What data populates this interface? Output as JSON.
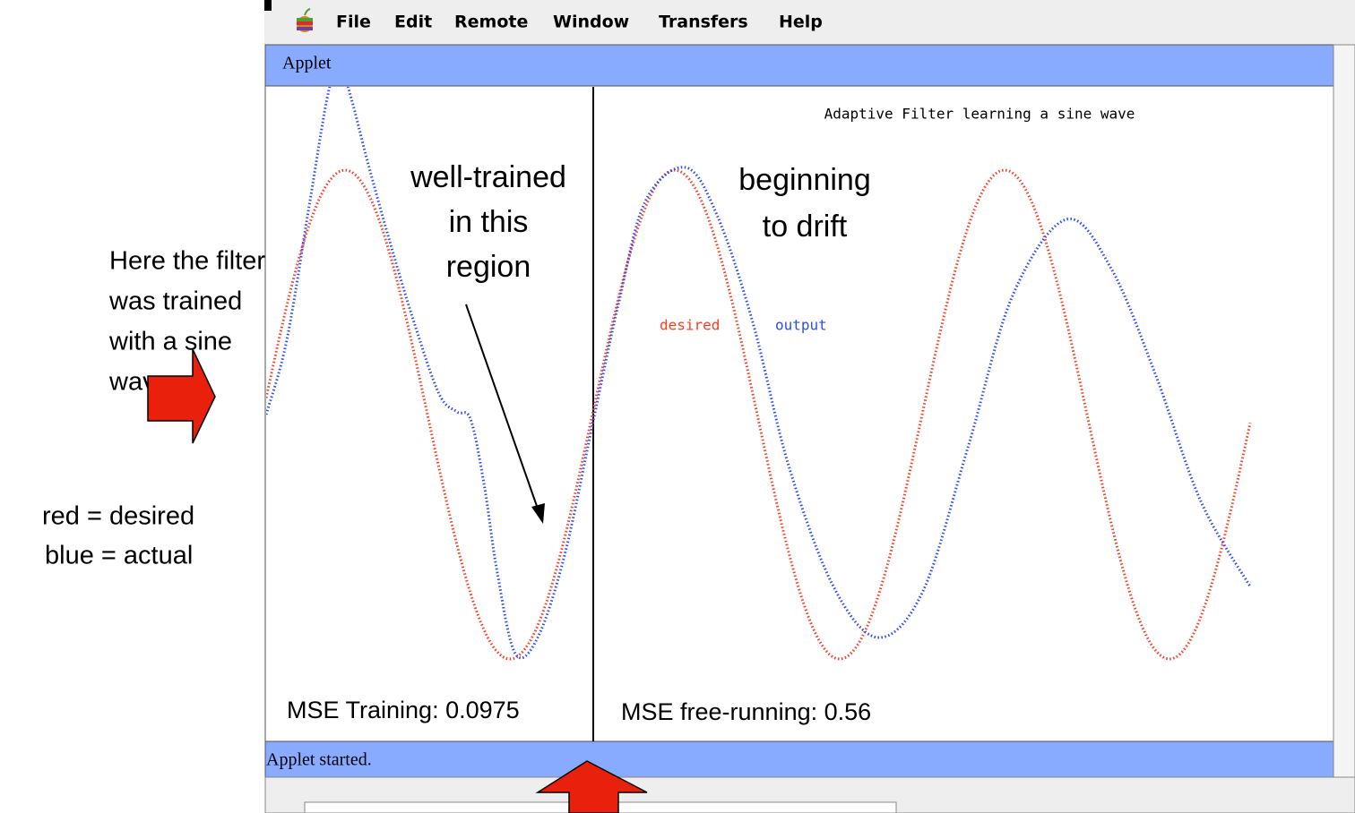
{
  "menu": {
    "items": [
      "File",
      "Edit",
      "Remote",
      "Window",
      "Transfers",
      "Help"
    ]
  },
  "window": {
    "title": "Applet",
    "status": "Applet started."
  },
  "plot": {
    "title": "Adaptive Filter learning a sine wave",
    "legend": [
      "desired",
      "output"
    ]
  },
  "annotations": {
    "left": [
      "Here the filter",
      "was trained",
      "with a sine",
      "wave"
    ],
    "key": [
      "red = desired",
      "blue = actual"
    ],
    "well_trained": [
      "well-trained",
      "in this",
      "region"
    ],
    "drift": [
      "beginning",
      "to drift"
    ],
    "mse_training": "MSE Training: 0.0975",
    "mse_free": "MSE free-running: 0.56"
  }
}
